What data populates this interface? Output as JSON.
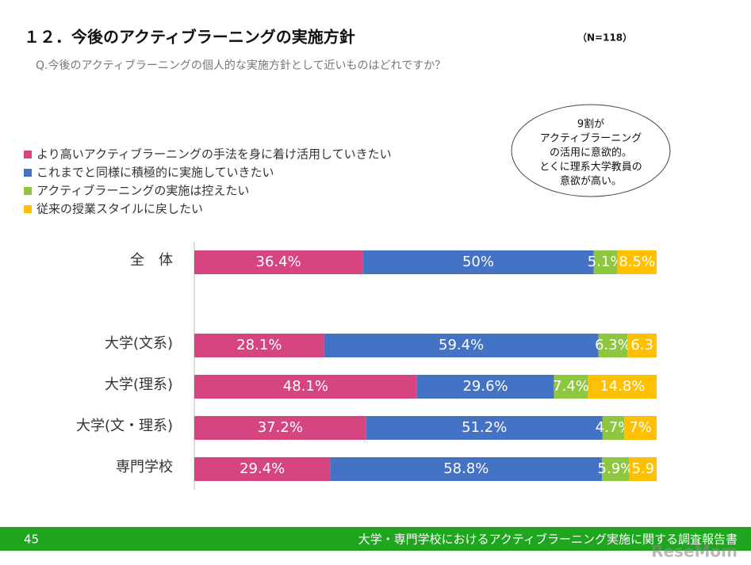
{
  "chart_data": {
    "type": "stacked-bar-horizontal",
    "title": "１２．今後のアクティブラーニングの実施方針",
    "subtitle": "Q.今後のアクティブラーニングの個人的な実施方針として近いものはどれですか？",
    "note": "（N=118）",
    "categories": [
      "全　体",
      "大学(文系)",
      "大学(理系)",
      "大学(文・理系)",
      "専門学校"
    ],
    "series": [
      {
        "name": "より高いアクティブラーニングの手法を身に着け活用していきたい",
        "color": "#d6457f",
        "values": [
          36.4,
          28.1,
          48.1,
          37.2,
          29.4
        ],
        "value_labels": [
          "36.4%",
          "28.1%",
          "48.1%",
          "37.2%",
          "29.4%"
        ]
      },
      {
        "name": "これまでと同様に積極的に実施していきたい",
        "color": "#4472c4",
        "values": [
          50,
          59.4,
          29.6,
          51.2,
          58.8
        ],
        "value_labels": [
          "50%",
          "59.4%",
          "29.6%",
          "51.2%",
          "58.8%"
        ]
      },
      {
        "name": "アクティブラーニングの実施は控えたい",
        "color": "#8dc63f",
        "values": [
          5.1,
          6.3,
          7.4,
          4.7,
          5.9
        ],
        "value_labels": [
          "5.1%",
          "6.3%",
          "7.4%",
          "4.7%",
          "5.9%"
        ]
      },
      {
        "name": "従来の授業スタイルに戻したい",
        "color": "#ffc000",
        "values": [
          8.5,
          6.3,
          14.8,
          7,
          5.9
        ],
        "value_labels": [
          "8.5%",
          "6.3",
          "14.8%",
          "7%",
          "5.9"
        ]
      }
    ],
    "callout": [
      "9割が",
      "アクティブラーニング",
      "の活用に意欲的。",
      "とくに理系大学教員の",
      "意欲が高い。"
    ]
  },
  "footer": {
    "page": "45",
    "text": "大学・専門学校におけるアクティブラーニング実施に関する調査報告書",
    "logo": "ReseMom"
  }
}
